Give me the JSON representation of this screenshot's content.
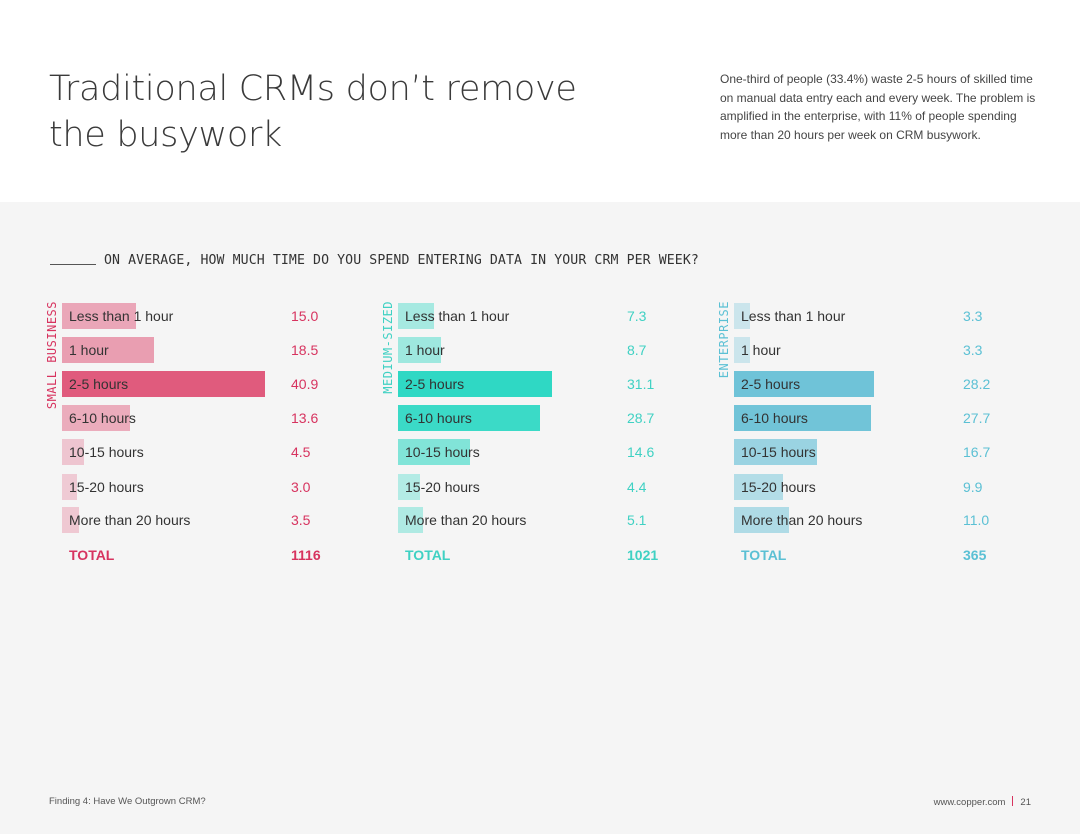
{
  "header": {
    "title_lines": [
      "Traditional CRMs don’t remove",
      "the busywork"
    ],
    "intro": "One-third of people (33.4%) waste 2-5 hours of skilled time on manual data entry each and every week. The problem is amplified in the enterprise, with 11% of people spending more than 20 hours per week on CRM busywork."
  },
  "question": "ON AVERAGE, HOW MUCH TIME DO YOU SPEND ENTERING DATA IN YOUR CRM PER WEEK?",
  "chart_data": [
    {
      "type": "bar",
      "orientation": "horizontal",
      "segment": "SMALL BUSINESS",
      "categories": [
        "Less than 1 hour",
        "1 hour",
        "2-5 hours",
        "6-10 hours",
        "10-15 hours",
        "15-20 hours",
        "More than 20 hours"
      ],
      "values": [
        15.0,
        18.5,
        40.9,
        13.6,
        4.5,
        3.0,
        3.5
      ],
      "value_labels": [
        "15.0",
        "18.5",
        "40.9",
        "13.6",
        "4.5",
        "3.0",
        "3.5"
      ],
      "total_label": "TOTAL",
      "total_value": "1116",
      "color": "#e05b7d",
      "label_color": "#d7335f",
      "xlim": [
        0,
        40.9
      ]
    },
    {
      "type": "bar",
      "orientation": "horizontal",
      "segment": "MEDIUM-SIZED",
      "categories": [
        "Less than 1 hour",
        "1 hour",
        "2-5 hours",
        "6-10 hours",
        "10-15 hours",
        "15-20 hours",
        "More than 20 hours"
      ],
      "values": [
        7.3,
        8.7,
        31.1,
        28.7,
        14.6,
        4.4,
        5.1
      ],
      "value_labels": [
        "7.3",
        "8.7",
        "31.1",
        "28.7",
        "14.6",
        "4.4",
        "5.1"
      ],
      "total_label": "TOTAL",
      "total_value": "1021",
      "color": "#2fd8c4",
      "label_color": "#3fd1c3",
      "xlim": [
        0,
        40.9
      ]
    },
    {
      "type": "bar",
      "orientation": "horizontal",
      "segment": "ENTERPRISE",
      "categories": [
        "Less than 1 hour",
        "1 hour",
        "2-5 hours",
        "6-10 hours",
        "10-15 hours",
        "15-20 hours",
        "More than 20 hours"
      ],
      "values": [
        3.3,
        3.3,
        28.2,
        27.7,
        16.7,
        9.9,
        11.0
      ],
      "value_labels": [
        "3.3",
        "3.3",
        "28.2",
        "27.7",
        "16.7",
        "9.9",
        "11.0"
      ],
      "total_label": "TOTAL",
      "total_value": "365",
      "color": "#6fc3d8",
      "label_color": "#5bc0d4",
      "xlim": [
        0,
        40.9
      ]
    }
  ],
  "footer": {
    "left": "Finding 4: Have We Outgrown CRM?",
    "site": "www.copper.com",
    "page": "21"
  }
}
